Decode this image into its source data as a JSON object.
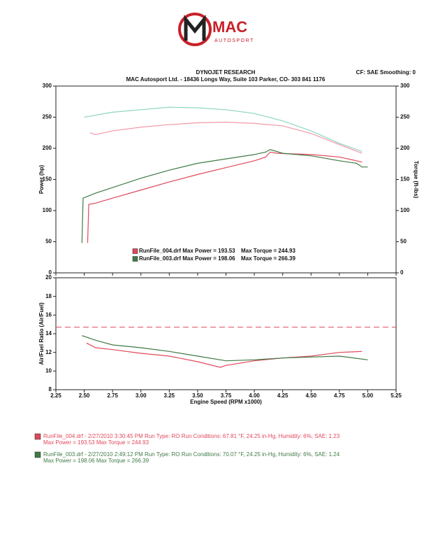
{
  "header": {
    "logo_main": "MAC",
    "logo_sub": "AUTOSPORT",
    "title": "DYNOJET RESEARCH",
    "address": "MAC Autosport Ltd. - 18436 Longs Way, Suite 103 Parker, CO- 303 841 1176",
    "settings": "CF: SAE  Smoothing: 0"
  },
  "chart_data": [
    {
      "type": "line",
      "y_label": "Power (hp)",
      "y2_label": "Torque (ft-lbs)",
      "xlim": [
        2.25,
        5.25
      ],
      "xticks": [
        2.25,
        2.5,
        2.75,
        3,
        3.25,
        3.5,
        3.75,
        4,
        4.25,
        4.5,
        4.75,
        5,
        5.25
      ],
      "ylim": [
        0,
        300
      ],
      "yticks": [
        0,
        50,
        100,
        150,
        200,
        250,
        300
      ],
      "y2lim": [
        0,
        300
      ],
      "y2ticks": [
        0,
        50,
        100,
        150,
        200,
        250,
        300
      ],
      "series": [
        {
          "color": "#e0485a",
          "x": [
            2.53,
            2.54,
            2.6,
            2.75,
            3.0,
            3.25,
            3.5,
            3.75,
            4.0,
            4.1,
            4.14,
            4.2,
            4.5,
            4.75,
            4.95
          ],
          "values": [
            48,
            110,
            112,
            120,
            133,
            146,
            158,
            169,
            180,
            186,
            194,
            192,
            190,
            186,
            178
          ]
        },
        {
          "color": "#3f7a45",
          "x": [
            2.48,
            2.49,
            2.6,
            2.75,
            3.0,
            3.25,
            3.5,
            3.75,
            4.0,
            4.1,
            4.14,
            4.25,
            4.5,
            4.75,
            4.9,
            4.95,
            5.0
          ],
          "values": [
            48,
            120,
            128,
            137,
            152,
            165,
            176,
            183,
            190,
            194,
            198,
            192,
            188,
            180,
            176,
            170,
            170
          ]
        },
        {
          "color": "#f29aa6",
          "axis": "y2",
          "x": [
            2.55,
            2.6,
            2.75,
            3.0,
            3.25,
            3.5,
            3.75,
            4.0,
            4.25,
            4.5,
            4.75,
            4.95
          ],
          "values": [
            225,
            222,
            228,
            234,
            238,
            241,
            242,
            240,
            236,
            224,
            206,
            192
          ]
        },
        {
          "color": "#8fd4c4",
          "axis": "y2",
          "x": [
            2.5,
            2.75,
            3.0,
            3.25,
            3.5,
            3.75,
            4.0,
            4.25,
            4.5,
            4.75,
            4.95
          ],
          "values": [
            250,
            258,
            262,
            266,
            265,
            262,
            256,
            244,
            228,
            208,
            195
          ]
        }
      ],
      "legend": [
        {
          "color": "#e0485a",
          "label": "RunFile_004.drf Max Power = 193.53",
          "torque": "Max Torque = 244.93"
        },
        {
          "color": "#3f7a45",
          "label": "RunFile_003.drf Max Power = 198.06",
          "torque": "Max Torque = 266.39"
        }
      ]
    },
    {
      "type": "line",
      "y_label": "Air/Fuel Ratio (Air/Fuel)",
      "x_label": "Engine Speed (RPM x1000)",
      "xlim": [
        2.25,
        5.25
      ],
      "xticks": [
        2.25,
        {
          "value": 2.5,
          "label": "2.50"
        },
        2.75,
        {
          "value": 3,
          "label": "3.00"
        },
        3.25,
        {
          "value": 3.5,
          "label": "3.50"
        },
        3.75,
        {
          "value": 4,
          "label": "4.00"
        },
        4.25,
        {
          "value": 4.5,
          "label": "4.50"
        },
        4.75,
        {
          "value": 5,
          "label": "5.00"
        },
        5.25
      ],
      "ylim": [
        8,
        20
      ],
      "yticks": [
        8,
        10,
        12,
        14,
        16,
        18,
        20
      ],
      "reference_line": 14.7,
      "reference_color": "#e0485a",
      "series": [
        {
          "color": "#e0485a",
          "x": [
            2.52,
            2.6,
            2.75,
            3.0,
            3.25,
            3.5,
            3.7,
            3.75,
            4.0,
            4.25,
            4.5,
            4.75,
            4.95
          ],
          "values": [
            13.0,
            12.5,
            12.3,
            11.9,
            11.6,
            11.0,
            10.4,
            10.6,
            11.1,
            11.4,
            11.6,
            12.0,
            12.1
          ]
        },
        {
          "color": "#3f7a45",
          "x": [
            2.48,
            2.6,
            2.75,
            3.0,
            3.25,
            3.5,
            3.75,
            4.0,
            4.25,
            4.5,
            4.75,
            5.0
          ],
          "values": [
            13.8,
            13.3,
            12.8,
            12.5,
            12.1,
            11.6,
            11.1,
            11.2,
            11.4,
            11.5,
            11.6,
            11.2
          ]
        }
      ]
    }
  ],
  "footer": [
    {
      "color": "#e0485a",
      "lines": [
        "RunFile_004.drf - 2/27/2010 3:30:45 PM  Run Type: RO  Run Conditions: 67.81 °F, 24.25 in-Hg,  Humidity:  6%,  SAE: 1.23",
        "Max Power = 193.53  Max Torque = 244.93"
      ]
    },
    {
      "color": "#3f7a45",
      "lines": [
        "RunFile_003.drf - 2/27/2010 2:49:12 PM  Run Type: RO  Run Conditions: 70.07 °F, 24.25 in-Hg,  Humidity:  6%,  SAE: 1.24",
        "Max Power = 198.06  Max Torque = 266.39"
      ]
    }
  ]
}
